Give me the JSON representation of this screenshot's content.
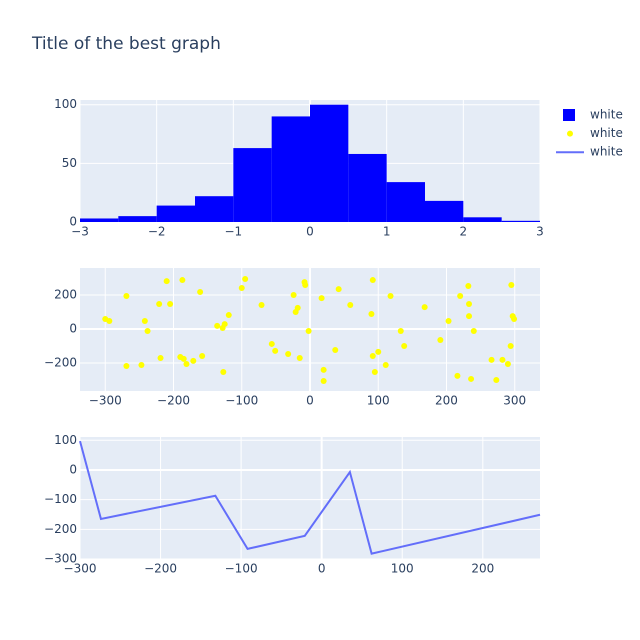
{
  "title": "Title of the best graph",
  "chart_data": [
    {
      "type": "histogram",
      "bins": [
        -3,
        -2.5,
        -2,
        -1.5,
        -1,
        -0.5,
        0,
        0.5,
        1,
        1.5,
        2,
        2.5,
        3
      ],
      "series": [
        {
          "name": "white",
          "color": "#0000ff",
          "values": [
            3,
            5,
            14,
            22,
            63,
            90,
            100,
            58,
            34,
            18,
            4,
            1
          ]
        }
      ],
      "xlim": [
        -3,
        3
      ],
      "ylim": [
        0,
        104
      ],
      "xticks": [
        {
          "value": -3,
          "label": "−3"
        },
        {
          "value": -2,
          "label": "−2"
        },
        {
          "value": -1,
          "label": "−1"
        },
        0,
        1,
        2,
        3
      ],
      "yticks": [
        0,
        50,
        100
      ],
      "grid": true
    },
    {
      "type": "scatter",
      "x": [
        -300,
        -294,
        -269,
        -269,
        -247,
        -242,
        -238,
        -221,
        -219,
        -210,
        -205,
        -190,
        -187,
        -185,
        -181,
        -171,
        -161,
        -158,
        -136,
        -128,
        -127,
        -125,
        -119,
        -100,
        -95,
        -71,
        -56,
        -51,
        -32,
        -24,
        -21,
        -18,
        -15,
        -8,
        -7,
        -2,
        17,
        20,
        20,
        37,
        42,
        59,
        90,
        92,
        92,
        95,
        100,
        111,
        118,
        133,
        138,
        168,
        191,
        203,
        216,
        220,
        232,
        233,
        233,
        236,
        240,
        266,
        273,
        282,
        290,
        294,
        295,
        297,
        299
      ],
      "series": [
        {
          "name": "white",
          "color": "#ffff00",
          "values": [
            59,
            47,
            194,
            -218,
            -212,
            47,
            -12,
            147,
            -171,
            282,
            147,
            -165,
            288,
            -176,
            -206,
            -188,
            218,
            -159,
            18,
            6,
            -253,
            29,
            82,
            241,
            294,
            141,
            -88,
            -129,
            -147,
            200,
            100,
            124,
            -171,
            276,
            259,
            -12,
            182,
            -241,
            -306,
            -124,
            235,
            141,
            88,
            288,
            -159,
            -253,
            -135,
            -212,
            194,
            -12,
            -100,
            129,
            -65,
            47,
            -276,
            194,
            253,
            147,
            76,
            -294,
            -12,
            -182,
            -300,
            -182,
            -206,
            -100,
            259,
            76,
            59
          ]
        }
      ],
      "xlim": [
        -337,
        337
      ],
      "ylim": [
        -365,
        359
      ],
      "xticks": [
        {
          "value": -300,
          "label": "−300"
        },
        {
          "value": -200,
          "label": "−200"
        },
        {
          "value": -100,
          "label": "−100"
        },
        0,
        100,
        200,
        300
      ],
      "yticks": [
        {
          "value": -200,
          "label": "−200"
        },
        0,
        200
      ],
      "grid": true
    },
    {
      "type": "line",
      "x": [
        -300,
        -274,
        -132,
        -92,
        -21,
        35,
        62,
        271
      ],
      "series": [
        {
          "name": "white",
          "color": "#636efa",
          "values": [
            97,
            -165,
            -87,
            -266,
            -222,
            -7,
            -282,
            -151
          ]
        }
      ],
      "xlim": [
        -300,
        271
      ],
      "ylim": [
        -300,
        111
      ],
      "xticks": [
        {
          "value": -300,
          "label": "−300"
        },
        {
          "value": -200,
          "label": "−200"
        },
        {
          "value": -100,
          "label": "−100"
        },
        0,
        100,
        200
      ],
      "yticks": [
        {
          "value": -300,
          "label": "−300"
        },
        {
          "value": -200,
          "label": "−200"
        },
        {
          "value": -100,
          "label": "−100"
        },
        0,
        100
      ],
      "grid": true
    }
  ]
}
